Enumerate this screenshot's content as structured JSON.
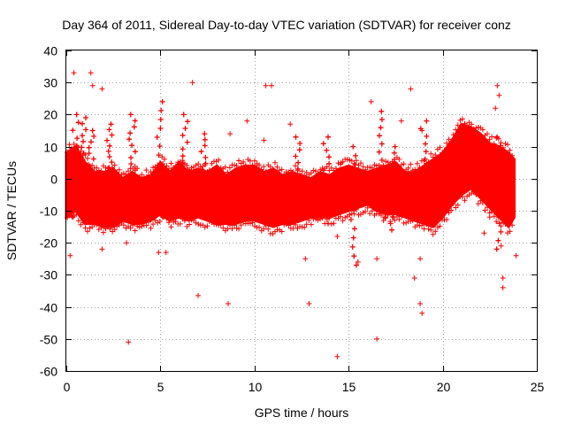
{
  "chart_data": {
    "type": "scatter",
    "title": "Day 364 of 2011, Sidereal Day-to-day VTEC variation (SDTVAR) for receiver conz",
    "xlabel": "GPS time / hours",
    "ylabel": "SDTVAR / TECUs",
    "xlim": [
      0,
      25
    ],
    "ylim": [
      -60,
      40
    ],
    "xticks": [
      0,
      5,
      10,
      15,
      20,
      25
    ],
    "yticks": [
      -60,
      -50,
      -40,
      -30,
      -20,
      -10,
      0,
      10,
      20,
      30,
      40
    ],
    "grid": true,
    "marker": "+",
    "color": "#ff0000",
    "band": {
      "description": "dense band of points (upper and lower envelope per hour)",
      "x": [
        0,
        0.5,
        1,
        1.5,
        2,
        2.5,
        3,
        3.5,
        4,
        4.5,
        5,
        5.5,
        6,
        6.5,
        7,
        7.5,
        8,
        8.5,
        9,
        9.5,
        10,
        10.5,
        11,
        11.5,
        12,
        12.5,
        13,
        13.5,
        14,
        14.5,
        15,
        15.5,
        16,
        16.5,
        17,
        17.5,
        18,
        18.5,
        19,
        19.5,
        20,
        20.5,
        21,
        21.5,
        22,
        22.5,
        23,
        23.5,
        23.8
      ],
      "upper": [
        8,
        10,
        5,
        2,
        2,
        3,
        0,
        2,
        0,
        1,
        5,
        2,
        5,
        2,
        3,
        2,
        4,
        1,
        3,
        4,
        4,
        2,
        3,
        1,
        2,
        1,
        0,
        2,
        1,
        3,
        4,
        3,
        2,
        3,
        4,
        5,
        2,
        2,
        4,
        6,
        8,
        12,
        17,
        16,
        14,
        11,
        10,
        8,
        6
      ],
      "lower": [
        -12,
        -10,
        -14,
        -14,
        -15,
        -15,
        -13,
        -14,
        -14,
        -13,
        -11,
        -13,
        -12,
        -13,
        -12,
        -13,
        -14,
        -14,
        -14,
        -13,
        -13,
        -14,
        -15,
        -14,
        -14,
        -13,
        -12,
        -12,
        -12,
        -11,
        -10,
        -9,
        -8,
        -10,
        -11,
        -11,
        -12,
        -13,
        -14,
        -15,
        -12,
        -8,
        -5,
        -3,
        -6,
        -9,
        -12,
        -15,
        -12
      ]
    },
    "spikes": [
      {
        "x": 0.5,
        "top": 20,
        "bottom": -12
      },
      {
        "x": 0.9,
        "top": 19,
        "bottom": -5
      },
      {
        "x": 1.3,
        "top": 15,
        "bottom": -8
      },
      {
        "x": 2.3,
        "top": 17,
        "bottom": -5
      },
      {
        "x": 3.5,
        "top": 20,
        "bottom": -5
      },
      {
        "x": 5.0,
        "top": 24,
        "bottom": -12
      },
      {
        "x": 6.3,
        "top": 20,
        "bottom": -8
      },
      {
        "x": 7.3,
        "top": 14,
        "bottom": -10
      },
      {
        "x": 12.3,
        "top": 13,
        "bottom": -13
      },
      {
        "x": 13.8,
        "top": 13,
        "bottom": -14
      },
      {
        "x": 15.3,
        "top": 10,
        "bottom": -27
      },
      {
        "x": 16.8,
        "top": 21,
        "bottom": -12
      },
      {
        "x": 17.3,
        "top": 10,
        "bottom": -16
      },
      {
        "x": 19.0,
        "top": 18,
        "bottom": -13
      },
      {
        "x": 23.0,
        "top": 13,
        "bottom": -22
      }
    ],
    "outliers": [
      {
        "x": 0.4,
        "y": 33
      },
      {
        "x": 1.3,
        "y": 33
      },
      {
        "x": 1.4,
        "y": 29
      },
      {
        "x": 1.9,
        "y": 28
      },
      {
        "x": 3.3,
        "y": -51
      },
      {
        "x": 3.2,
        "y": -20
      },
      {
        "x": 4.9,
        "y": -23
      },
      {
        "x": 6.7,
        "y": 30
      },
      {
        "x": 7.0,
        "y": -36.5
      },
      {
        "x": 8.6,
        "y": -39
      },
      {
        "x": 8.7,
        "y": 14
      },
      {
        "x": 9.6,
        "y": 18
      },
      {
        "x": 10.6,
        "y": 29
      },
      {
        "x": 10.9,
        "y": 29
      },
      {
        "x": 12.7,
        "y": -25
      },
      {
        "x": 12.9,
        "y": -39
      },
      {
        "x": 14.4,
        "y": -55.5
      },
      {
        "x": 14.4,
        "y": -18
      },
      {
        "x": 15.5,
        "y": -26
      },
      {
        "x": 16.5,
        "y": -50
      },
      {
        "x": 16.5,
        "y": -25
      },
      {
        "x": 18.3,
        "y": 28
      },
      {
        "x": 18.5,
        "y": -31
      },
      {
        "x": 18.8,
        "y": -39
      },
      {
        "x": 18.9,
        "y": -42
      },
      {
        "x": 18.8,
        "y": -25
      },
      {
        "x": 20.3,
        "y": -10
      },
      {
        "x": 22.5,
        "y": -12
      },
      {
        "x": 22.8,
        "y": 22
      },
      {
        "x": 22.9,
        "y": 29
      },
      {
        "x": 23.0,
        "y": 26
      },
      {
        "x": 23.1,
        "y": -21
      },
      {
        "x": 23.2,
        "y": -31
      },
      {
        "x": 23.2,
        "y": -34
      },
      {
        "x": 23.9,
        "y": -24
      },
      {
        "x": 1.9,
        "y": -22
      },
      {
        "x": 0.2,
        "y": -24
      },
      {
        "x": 5.3,
        "y": -23
      },
      {
        "x": 10.5,
        "y": 12
      },
      {
        "x": 11.9,
        "y": 17
      },
      {
        "x": 14.6,
        "y": 5
      },
      {
        "x": 16.2,
        "y": 24
      },
      {
        "x": 17.8,
        "y": 18
      },
      {
        "x": 18.9,
        "y": 15
      },
      {
        "x": 21.9,
        "y": 16
      },
      {
        "x": 22.2,
        "y": -17
      }
    ]
  }
}
